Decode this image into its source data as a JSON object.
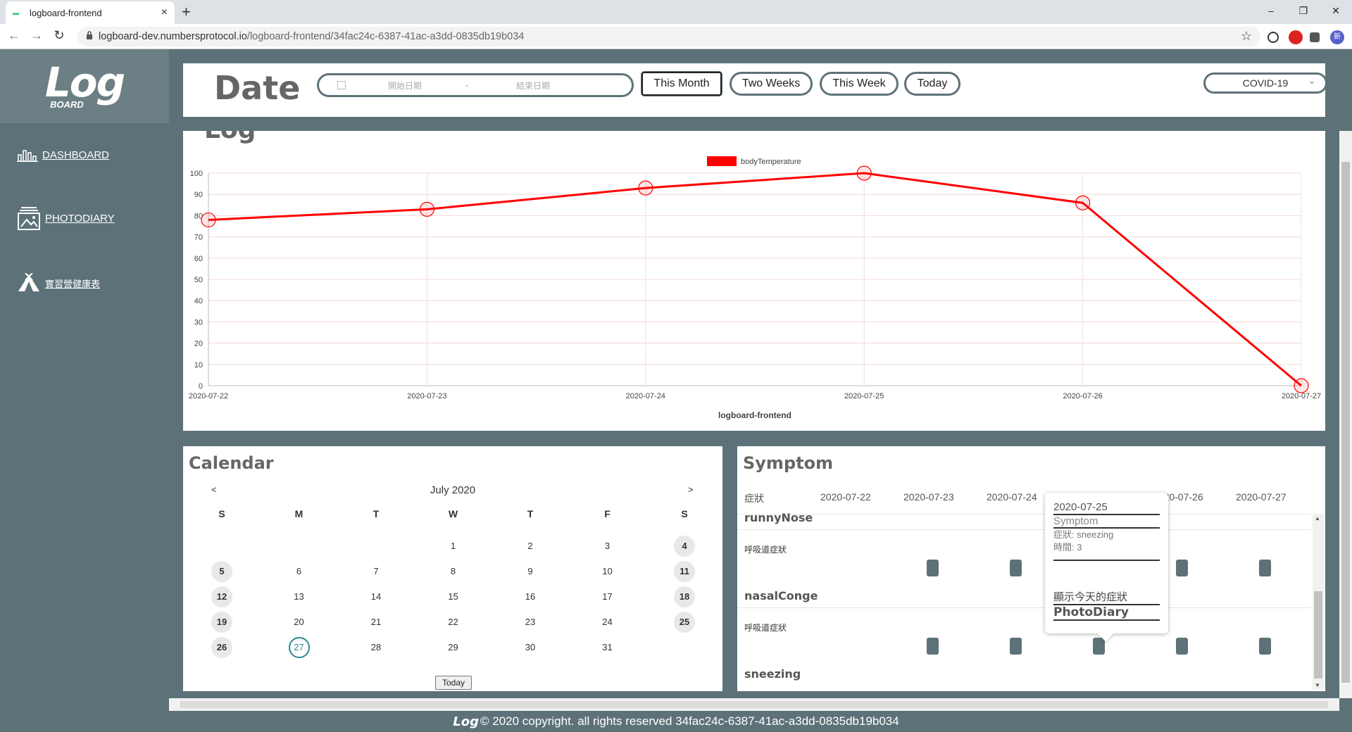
{
  "browser": {
    "tab_title": "logboard-frontend",
    "tab_close": "×",
    "new_tab": "+",
    "url_host": "logboard-dev.numbersprotocol.io",
    "url_path": "/logboard-frontend/34fac24c-6387-41ac-a3dd-0835db19b034",
    "min": "–",
    "max": "❐",
    "close": "✕",
    "back": "←",
    "forward": "→",
    "reload": "↻",
    "star": "☆",
    "profile_initial": "新"
  },
  "sidebar": {
    "logo": "Log",
    "logo_sub": "BOARD",
    "items": [
      {
        "label": "DASHBOARD",
        "icon": "bar-chart-icon"
      },
      {
        "label": "PHOTODIARY",
        "icon": "photo-icon"
      },
      {
        "label": "實習營健康表",
        "icon": "tent-icon"
      }
    ]
  },
  "header": {
    "title": "Date",
    "start_placeholder": "開始日期",
    "separator": "-",
    "end_placeholder": "結束日期",
    "buttons": [
      "This Month",
      "Two Weeks",
      "This Week",
      "Today"
    ],
    "active_button": "This Month",
    "select_value": "COVID-19"
  },
  "chart_section": {
    "heading": "Log"
  },
  "chart_data": {
    "type": "line",
    "title": "",
    "xlabel": "logboard-frontend",
    "ylabel": "",
    "categories": [
      "2020-07-22",
      "2020-07-23",
      "2020-07-24",
      "2020-07-25",
      "2020-07-26",
      "2020-07-27"
    ],
    "series": [
      {
        "name": "bodyTemperature",
        "values": [
          78,
          83,
          93,
          100,
          86,
          0
        ],
        "color": "#ff0000"
      }
    ],
    "ylim": [
      0,
      100
    ],
    "yticks": [
      0,
      10,
      20,
      30,
      40,
      50,
      60,
      70,
      80,
      90,
      100
    ],
    "grid": true,
    "legend_position": "top-center"
  },
  "calendar": {
    "title": "Calendar",
    "month": "July 2020",
    "prev": "<",
    "next": ">",
    "weekdays": [
      "S",
      "M",
      "T",
      "W",
      "T",
      "F",
      "S"
    ],
    "first_weekday": 3,
    "days_in_month": 31,
    "today": 27,
    "today_button": "Today"
  },
  "symptom": {
    "title": "Symptom",
    "col_header": "症狀",
    "dates": [
      "2020-07-22",
      "2020-07-23",
      "2020-07-24",
      "2020-07-25",
      "2020-07-26",
      "2020-07-27"
    ],
    "rows": [
      {
        "name": "runnyNose",
        "category": "呼吸道症狀",
        "marks": [
          false,
          true,
          true,
          true,
          true,
          true
        ]
      },
      {
        "name": "nasalCongestion",
        "category": "呼吸道症狀",
        "marks": [
          false,
          true,
          true,
          true,
          true,
          true
        ]
      },
      {
        "name": "sneezing",
        "category": "",
        "marks": []
      }
    ]
  },
  "tooltip": {
    "date": "2020-07-25",
    "type": "Symptom",
    "symptom_line": "症狀: sneezing",
    "time_line": "時間: 3",
    "link_today": "顯示今天的症狀",
    "link_photo": "PhotoDiary"
  },
  "footer": {
    "logo": "Log",
    "text": "© 2020 copyright. all rights reserved 34fac24c-6387-41ac-a3dd-0835db19b034"
  }
}
